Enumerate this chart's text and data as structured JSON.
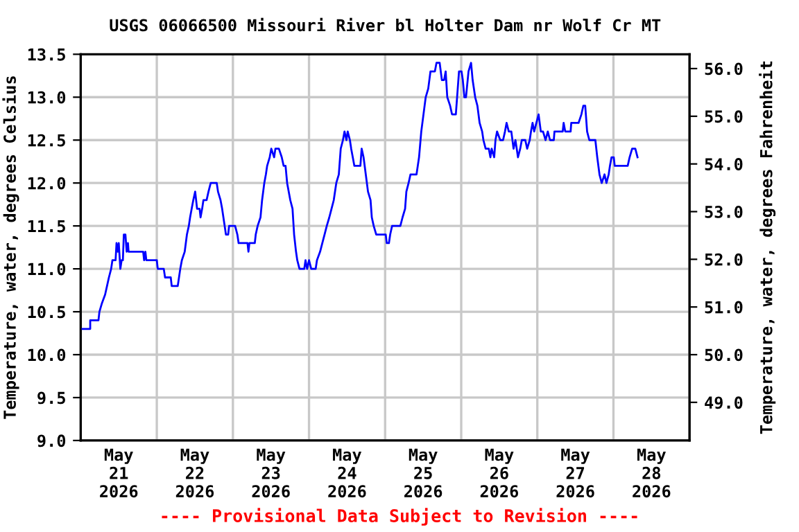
{
  "chart_data": {
    "type": "line",
    "title": "USGS 06066500 Missouri River bl Holter Dam nr Wolf Cr MT",
    "ylabel": "Temperature, water, degrees Celsius",
    "y2label": "Temperature, water, degrees Fahrenheit",
    "annotations": [
      "---- Provisional Data Subject to Revision ----"
    ],
    "x": [
      "2026-05-21T00:00",
      "2026-05-21T03:00",
      "2026-05-21T03:00",
      "2026-05-21T05:36",
      "2026-05-21T05:54",
      "2026-05-21T06:42",
      "2026-05-21T07:42",
      "2026-05-21T08:18",
      "2026-05-21T08:54",
      "2026-05-21T09:36",
      "2026-05-21T10:00",
      "2026-05-21T11:00",
      "2026-05-21T11:18",
      "2026-05-21T11:42",
      "2026-05-21T12:00",
      "2026-05-21T12:30",
      "2026-05-21T12:54",
      "2026-05-21T13:18",
      "2026-05-21T13:36",
      "2026-05-21T14:06",
      "2026-05-21T14:30",
      "2026-05-21T14:54",
      "2026-05-21T15:06",
      "2026-05-21T19:42",
      "2026-05-21T20:00",
      "2026-05-21T20:24",
      "2026-05-21T20:42",
      "2026-05-22T00:00",
      "2026-05-22T00:18",
      "2026-05-22T02:12",
      "2026-05-22T02:36",
      "2026-05-22T04:24",
      "2026-05-22T04:42",
      "2026-05-22T06:36",
      "2026-05-22T07:00",
      "2026-05-22T07:24",
      "2026-05-22T07:54",
      "2026-05-22T08:48",
      "2026-05-22T09:30",
      "2026-05-22T10:06",
      "2026-05-22T10:30",
      "2026-05-22T11:00",
      "2026-05-22T11:30",
      "2026-05-22T12:06",
      "2026-05-22T12:42",
      "2026-05-22T13:30",
      "2026-05-22T13:48",
      "2026-05-22T14:18",
      "2026-05-22T14:42",
      "2026-05-22T15:42",
      "2026-05-22T16:18",
      "2026-05-22T17:00",
      "2026-05-22T18:54",
      "2026-05-22T19:18",
      "2026-05-22T20:06",
      "2026-05-22T20:36",
      "2026-05-22T21:00",
      "2026-05-22T21:24",
      "2026-05-22T21:48",
      "2026-05-22T22:30",
      "2026-05-22T22:48",
      "2026-05-23T00:42",
      "2026-05-23T01:24",
      "2026-05-23T01:48",
      "2026-05-23T04:36",
      "2026-05-23T04:54",
      "2026-05-23T05:12",
      "2026-05-23T06:54",
      "2026-05-23T07:12",
      "2026-05-23T07:48",
      "2026-05-23T08:42",
      "2026-05-23T09:12",
      "2026-05-23T09:54",
      "2026-05-23T10:24",
      "2026-05-23T10:48",
      "2026-05-23T11:36",
      "2026-05-23T12:06",
      "2026-05-23T13:00",
      "2026-05-23T13:24",
      "2026-05-23T14:30",
      "2026-05-23T15:24",
      "2026-05-23T16:00",
      "2026-05-23T16:36",
      "2026-05-23T17:06",
      "2026-05-23T18:06",
      "2026-05-23T18:48",
      "2026-05-23T19:18",
      "2026-05-23T19:54",
      "2026-05-23T20:18",
      "2026-05-23T21:00",
      "2026-05-23T22:30",
      "2026-05-23T22:54",
      "2026-05-23T23:24",
      "2026-05-24T00:00",
      "2026-05-24T00:42",
      "2026-05-24T02:06",
      "2026-05-24T02:30",
      "2026-05-24T03:30",
      "2026-05-24T04:12",
      "2026-05-24T04:54",
      "2026-05-24T05:36",
      "2026-05-24T06:24",
      "2026-05-24T07:06",
      "2026-05-24T07:48",
      "2026-05-24T08:36",
      "2026-05-24T09:24",
      "2026-05-24T10:00",
      "2026-05-24T10:42",
      "2026-05-24T11:12",
      "2026-05-24T11:48",
      "2026-05-24T12:12",
      "2026-05-24T12:54",
      "2026-05-24T13:18",
      "2026-05-24T13:48",
      "2026-05-24T14:18",
      "2026-05-24T16:12",
      "2026-05-24T16:36",
      "2026-05-24T17:12",
      "2026-05-24T17:54",
      "2026-05-24T18:36",
      "2026-05-24T19:24",
      "2026-05-24T19:48",
      "2026-05-24T20:24",
      "2026-05-24T21:12",
      "2026-05-25T00:12",
      "2026-05-25T00:30",
      "2026-05-25T01:12",
      "2026-05-25T01:36",
      "2026-05-25T02:12",
      "2026-05-25T04:48",
      "2026-05-25T05:30",
      "2026-05-25T06:18",
      "2026-05-25T06:42",
      "2026-05-25T07:24",
      "2026-05-25T08:00",
      "2026-05-25T09:54",
      "2026-05-25T10:42",
      "2026-05-25T11:24",
      "2026-05-25T12:06",
      "2026-05-25T12:48",
      "2026-05-25T13:36",
      "2026-05-25T14:18",
      "2026-05-25T15:42",
      "2026-05-25T16:12",
      "2026-05-25T17:12",
      "2026-05-25T17:54",
      "2026-05-25T18:36",
      "2026-05-25T19:06",
      "2026-05-25T19:36",
      "2026-05-25T20:30",
      "2026-05-25T21:06",
      "2026-05-25T22:18",
      "2026-05-25T22:42",
      "2026-05-25T23:18",
      "2026-05-26T00:06",
      "2026-05-26T00:30",
      "2026-05-26T01:00",
      "2026-05-26T01:30",
      "2026-05-26T02:18",
      "2026-05-26T03:06",
      "2026-05-26T03:36",
      "2026-05-26T04:24",
      "2026-05-26T05:06",
      "2026-05-26T05:48",
      "2026-05-26T06:36",
      "2026-05-26T07:00",
      "2026-05-26T07:42",
      "2026-05-26T08:42",
      "2026-05-26T09:12",
      "2026-05-26T09:36",
      "2026-05-26T10:24",
      "2026-05-26T10:48",
      "2026-05-26T11:18",
      "2026-05-26T12:18",
      "2026-05-26T13:12",
      "2026-05-26T13:48",
      "2026-05-26T14:18",
      "2026-05-26T15:00",
      "2026-05-26T15:48",
      "2026-05-26T16:30",
      "2026-05-26T17:06",
      "2026-05-26T17:54",
      "2026-05-26T18:36",
      "2026-05-26T19:06",
      "2026-05-26T20:12",
      "2026-05-26T20:48",
      "2026-05-26T21:36",
      "2026-05-26T22:00",
      "2026-05-26T22:30",
      "2026-05-26T23:00",
      "2026-05-26T23:42",
      "2026-05-27T00:24",
      "2026-05-27T01:06",
      "2026-05-27T01:48",
      "2026-05-27T02:36",
      "2026-05-27T03:18",
      "2026-05-27T04:00",
      "2026-05-27T05:12",
      "2026-05-27T05:24",
      "2026-05-27T08:00",
      "2026-05-27T08:18",
      "2026-05-27T08:48",
      "2026-05-27T10:30",
      "2026-05-27T10:42",
      "2026-05-27T13:00",
      "2026-05-27T13:54",
      "2026-05-27T14:30",
      "2026-05-27T15:06",
      "2026-05-27T15:42",
      "2026-05-27T16:24",
      "2026-05-27T18:18",
      "2026-05-27T18:54",
      "2026-05-27T19:36",
      "2026-05-27T20:18",
      "2026-05-27T21:12",
      "2026-05-27T21:48",
      "2026-05-27T22:30",
      "2026-05-27T22:54",
      "2026-05-27T23:24",
      "2026-05-28T00:06",
      "2026-05-28T00:24",
      "2026-05-28T04:30",
      "2026-05-28T05:06",
      "2026-05-28T05:54",
      "2026-05-28T06:54",
      "2026-05-28T07:36"
    ],
    "series": [
      {
        "color": "#0000ff",
        "values": [
          10.3,
          10.3,
          10.4,
          10.4,
          10.5,
          10.6,
          10.7,
          10.8,
          10.9,
          11.0,
          11.1,
          11.1,
          11.3,
          11.2,
          11.3,
          11.0,
          11.1,
          11.1,
          11.4,
          11.4,
          11.2,
          11.3,
          11.2,
          11.2,
          11.1,
          11.2,
          11.1,
          11.1,
          11.0,
          11.0,
          10.9,
          10.9,
          10.8,
          10.8,
          10.9,
          11.0,
          11.1,
          11.2,
          11.4,
          11.5,
          11.6,
          11.7,
          11.8,
          11.9,
          11.7,
          11.7,
          11.6,
          11.7,
          11.8,
          11.8,
          11.9,
          12.0,
          12.0,
          11.9,
          11.8,
          11.7,
          11.6,
          11.5,
          11.4,
          11.4,
          11.5,
          11.5,
          11.4,
          11.3,
          11.3,
          11.2,
          11.3,
          11.3,
          11.4,
          11.5,
          11.6,
          11.8,
          12.0,
          12.1,
          12.2,
          12.3,
          12.4,
          12.3,
          12.4,
          12.4,
          12.3,
          12.2,
          12.2,
          12.0,
          11.8,
          11.7,
          11.4,
          11.2,
          11.1,
          11.0,
          11.0,
          11.1,
          11.0,
          11.1,
          11.0,
          11.0,
          11.1,
          11.2,
          11.3,
          11.4,
          11.5,
          11.6,
          11.7,
          11.8,
          12.0,
          12.1,
          12.4,
          12.5,
          12.6,
          12.5,
          12.6,
          12.5,
          12.4,
          12.3,
          12.2,
          12.2,
          12.4,
          12.3,
          12.1,
          11.9,
          11.8,
          11.6,
          11.5,
          11.4,
          11.4,
          11.3,
          11.3,
          11.4,
          11.5,
          11.5,
          11.6,
          11.7,
          11.9,
          12.0,
          12.1,
          12.1,
          12.3,
          12.6,
          12.8,
          13.0,
          13.1,
          13.3,
          13.3,
          13.4,
          13.4,
          13.2,
          13.2,
          13.3,
          13.0,
          12.9,
          12.8,
          12.8,
          13.0,
          13.3,
          13.3,
          13.2,
          13.0,
          13.0,
          13.3,
          13.4,
          13.2,
          13.0,
          12.9,
          12.7,
          12.6,
          12.5,
          12.4,
          12.4,
          12.3,
          12.4,
          12.3,
          12.5,
          12.6,
          12.5,
          12.5,
          12.6,
          12.7,
          12.6,
          12.6,
          12.4,
          12.5,
          12.3,
          12.4,
          12.5,
          12.5,
          12.4,
          12.5,
          12.6,
          12.7,
          12.6,
          12.7,
          12.8,
          12.6,
          12.6,
          12.5,
          12.6,
          12.5,
          12.5,
          12.6,
          12.6,
          12.7,
          12.6,
          12.6,
          12.7,
          12.7,
          12.8,
          12.9,
          12.9,
          12.6,
          12.5,
          12.5,
          12.3,
          12.1,
          12.0,
          12.1,
          12.0,
          12.1,
          12.2,
          12.3,
          12.3,
          12.2,
          12.2,
          12.3,
          12.4,
          12.4,
          12.3
        ]
      }
    ],
    "xlim": [
      "2026-05-21T00:00",
      "2026-05-29T00:00"
    ],
    "xticks": [
      {
        "value": "2026-05-21T00:00",
        "label": null
      },
      {
        "value": "2026-05-21T12:00",
        "label": "May\n21\n2026"
      },
      {
        "value": "2026-05-22T00:00",
        "label": null
      },
      {
        "value": "2026-05-22T12:00",
        "label": "May\n22\n2026"
      },
      {
        "value": "2026-05-23T00:00",
        "label": null
      },
      {
        "value": "2026-05-23T12:00",
        "label": "May\n23\n2026"
      },
      {
        "value": "2026-05-24T00:00",
        "label": null
      },
      {
        "value": "2026-05-24T12:00",
        "label": "May\n24\n2026"
      },
      {
        "value": "2026-05-25T00:00",
        "label": null
      },
      {
        "value": "2026-05-25T12:00",
        "label": "May\n25\n2026"
      },
      {
        "value": "2026-05-26T00:00",
        "label": null
      },
      {
        "value": "2026-05-26T12:00",
        "label": "May\n26\n2026"
      },
      {
        "value": "2026-05-27T00:00",
        "label": null
      },
      {
        "value": "2026-05-27T12:00",
        "label": "May\n27\n2026"
      },
      {
        "value": "2026-05-28T00:00",
        "label": null
      },
      {
        "value": "2026-05-28T12:00",
        "label": "May\n28\n2026"
      },
      {
        "value": "2026-05-29T00:00",
        "label": null
      }
    ],
    "ylim": [
      9.0,
      13.5
    ],
    "yticks": [
      {
        "value": 9.0,
        "label": "9.0"
      },
      {
        "value": 9.5,
        "label": "9.5"
      },
      {
        "value": 10.0,
        "label": "10.0"
      },
      {
        "value": 10.5,
        "label": "10.5"
      },
      {
        "value": 11.0,
        "label": "11.0"
      },
      {
        "value": 11.5,
        "label": "11.5"
      },
      {
        "value": 12.0,
        "label": "12.0"
      },
      {
        "value": 12.5,
        "label": "12.5"
      },
      {
        "value": 13.0,
        "label": "13.0"
      },
      {
        "value": 13.5,
        "label": "13.5"
      }
    ],
    "y2lim": [
      48.2,
      56.3
    ],
    "y2ticks": [
      {
        "value": 49,
        "label": "49.0"
      },
      {
        "value": 50,
        "label": "50.0"
      },
      {
        "value": 51,
        "label": "51.0"
      },
      {
        "value": 52,
        "label": "52.0"
      },
      {
        "value": 53,
        "label": "53.0"
      },
      {
        "value": 54,
        "label": "54.0"
      },
      {
        "value": 55,
        "label": "55.0"
      },
      {
        "value": 56,
        "label": "56.0"
      }
    ],
    "grid": true
  }
}
